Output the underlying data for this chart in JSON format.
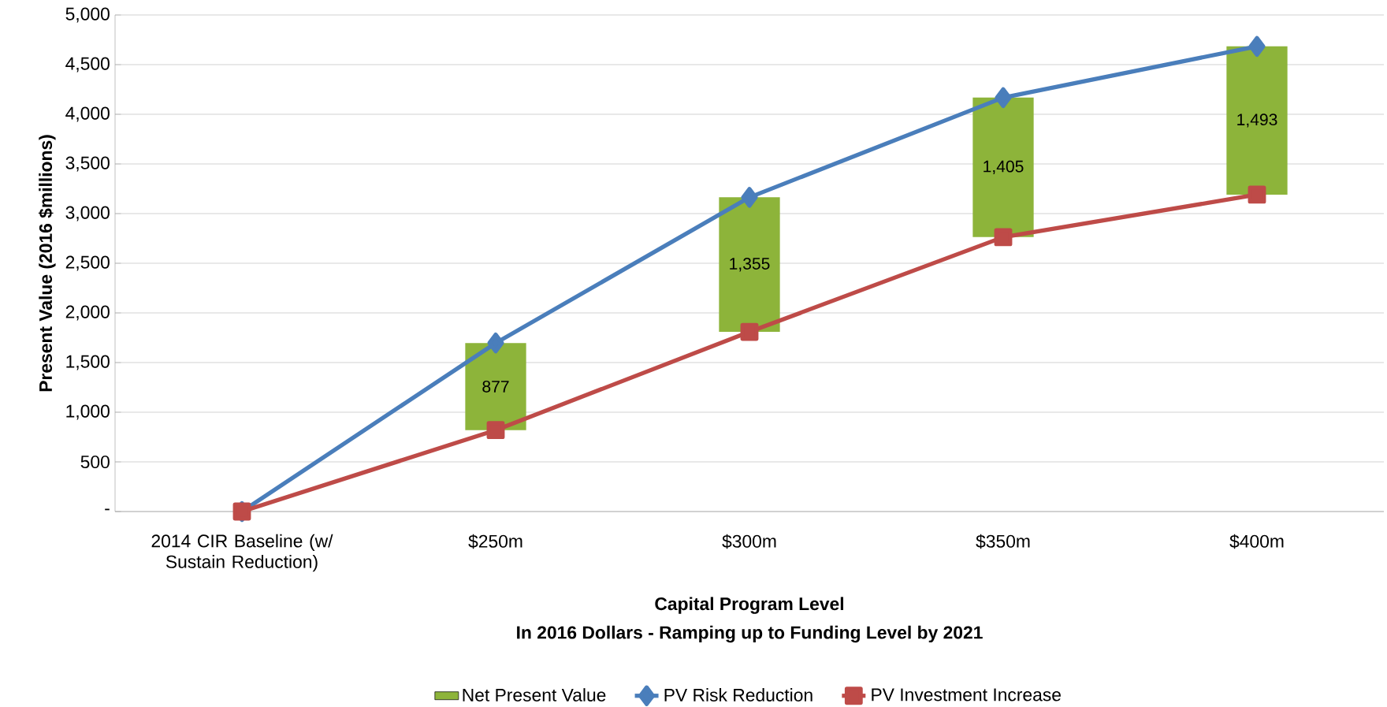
{
  "chart_data": {
    "type": "line",
    "xlabel": "Capital Program Level",
    "ylabel": "Present Value (2016 $millions)",
    "annotations": [
      "In 2016 Dollars - Ramping up to Funding Level by 2021"
    ],
    "categories": [
      "2014 CIR Baseline (w/ Sustain Reduction)",
      "$250m",
      "$300m",
      "$350m",
      "$400m"
    ],
    "series": [
      {
        "name": "Net Present Value",
        "type": "bar",
        "color": "#8db43a",
        "base": [
          null,
          820,
          1809,
          2763,
          3191
        ],
        "values": [
          null,
          877,
          1355,
          1405,
          1493
        ],
        "value_labels": [
          null,
          "877",
          "1,355",
          "1,405",
          "1,493"
        ]
      },
      {
        "name": "PV Risk Reduction",
        "color": "#4a7ebb",
        "marker": "diamond",
        "values": [
          0,
          1697,
          3164,
          4168,
          4684
        ]
      },
      {
        "name": "PV Investment Increase",
        "color": "#be4b48",
        "marker": "square",
        "values": [
          0,
          820,
          1809,
          2763,
          3191
        ]
      }
    ],
    "ylim": [
      0,
      5000
    ],
    "yticks": [
      {
        "value": 0,
        "label": "-"
      },
      {
        "value": 500,
        "label": "500"
      },
      {
        "value": 1000,
        "label": "1,000"
      },
      {
        "value": 1500,
        "label": "1,500"
      },
      {
        "value": 2000,
        "label": "2,000"
      },
      {
        "value": 2500,
        "label": "2,500"
      },
      {
        "value": 3000,
        "label": "3,000"
      },
      {
        "value": 3500,
        "label": "3,500"
      },
      {
        "value": 4000,
        "label": "4,000"
      },
      {
        "value": 4500,
        "label": "4,500"
      },
      {
        "value": 5000,
        "label": "5,000"
      }
    ],
    "grid": "y",
    "legend": "bottom"
  }
}
